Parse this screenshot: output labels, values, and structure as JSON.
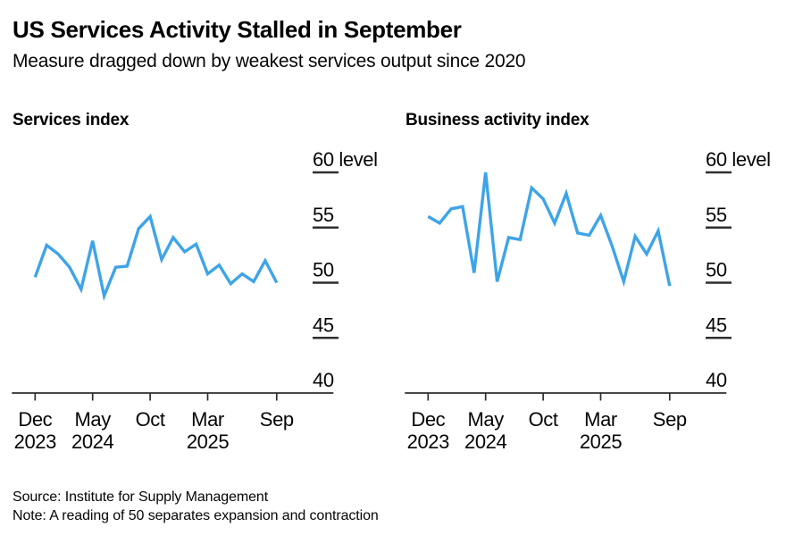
{
  "header": {
    "title": "US Services Activity Stalled in September",
    "subtitle": "Measure dragged down by weakest services output since 2020"
  },
  "colors": {
    "line": "#3ea4e8",
    "axis": "#2e2e2e",
    "text": "#050505"
  },
  "chart_data": [
    {
      "type": "line",
      "title": "Services index",
      "unit_label": "level",
      "x": [
        "Dec 2023",
        "Jan 2024",
        "Feb 2024",
        "Mar 2024",
        "Apr 2024",
        "May 2024",
        "Jun 2024",
        "Jul 2024",
        "Aug 2024",
        "Sep 2024",
        "Oct 2024",
        "Nov 2024",
        "Dec 2024",
        "Jan 2025",
        "Feb 2025",
        "Mar 2025",
        "Apr 2025",
        "May 2025",
        "Jun 2025",
        "Jul 2025",
        "Aug 2025",
        "Sep 2025"
      ],
      "values": [
        50.5,
        53.4,
        52.6,
        51.4,
        49.4,
        53.8,
        48.8,
        51.4,
        51.5,
        54.9,
        56.0,
        52.1,
        54.1,
        52.8,
        53.5,
        50.8,
        51.6,
        49.9,
        50.8,
        50.1,
        52.0,
        50.0
      ],
      "ylim": [
        40,
        60
      ],
      "yticks": [
        40,
        45,
        50,
        55,
        60
      ],
      "xticks": [
        {
          "index": 0,
          "line1": "Dec",
          "line2": "2023"
        },
        {
          "index": 5,
          "line1": "May",
          "line2": "2024"
        },
        {
          "index": 10,
          "line1": "Oct",
          "line2": ""
        },
        {
          "index": 15,
          "line1": "Mar",
          "line2": "2025"
        },
        {
          "index": 21,
          "line1": "Sep",
          "line2": ""
        }
      ],
      "grid": "right-stub-ticks",
      "legend": "none"
    },
    {
      "type": "line",
      "title": "Business activity index",
      "unit_label": "level",
      "x": [
        "Dec 2023",
        "Jan 2024",
        "Feb 2024",
        "Mar 2024",
        "Apr 2024",
        "May 2024",
        "Jun 2024",
        "Jul 2024",
        "Aug 2024",
        "Sep 2024",
        "Oct 2024",
        "Nov 2024",
        "Dec 2024",
        "Jan 2025",
        "Feb 2025",
        "Mar 2025",
        "Apr 2025",
        "May 2025",
        "Jun 2025",
        "Jul 2025",
        "Aug 2025",
        "Sep 2025"
      ],
      "values": [
        56.0,
        55.4,
        56.7,
        56.9,
        50.9,
        60.0,
        50.1,
        54.1,
        53.9,
        58.6,
        57.6,
        55.4,
        58.1,
        54.5,
        54.3,
        56.1,
        53.3,
        50.1,
        54.2,
        52.6,
        54.7,
        49.7
      ],
      "ylim": [
        40,
        60
      ],
      "yticks": [
        40,
        45,
        50,
        55,
        60
      ],
      "xticks": [
        {
          "index": 0,
          "line1": "Dec",
          "line2": "2023"
        },
        {
          "index": 5,
          "line1": "May",
          "line2": "2024"
        },
        {
          "index": 10,
          "line1": "Oct",
          "line2": ""
        },
        {
          "index": 15,
          "line1": "Mar",
          "line2": "2025"
        },
        {
          "index": 21,
          "line1": "Sep",
          "line2": ""
        }
      ],
      "grid": "right-stub-ticks",
      "legend": "none"
    }
  ],
  "footer": {
    "source": "Source: Institute for Supply Management",
    "note": "Note: A reading of 50 separates expansion and contraction"
  }
}
